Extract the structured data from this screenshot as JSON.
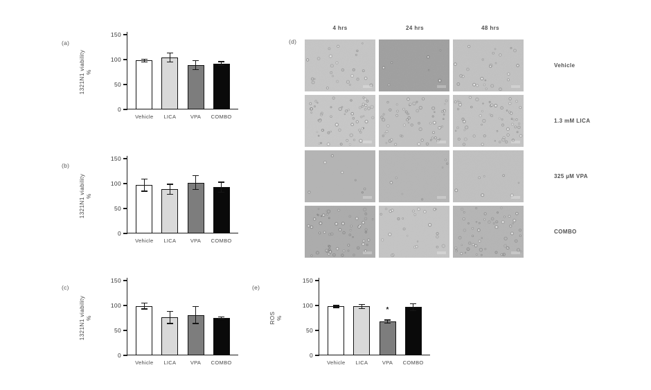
{
  "colors": {
    "axis": "#1c1c1c",
    "text": "#3e3e3e",
    "bar_white": "#ffffff",
    "bar_lightgray": "#d9d9d9",
    "bar_darkgray": "#7d7d7d",
    "bar_black": "#0a0a0a"
  },
  "chart_data": [
    {
      "type": "bar",
      "panel_label": "(a)",
      "categories": [
        "Vehicle",
        "LICA",
        "VPA",
        "COMBO"
      ],
      "values": [
        98,
        104,
        89,
        92
      ],
      "errors": [
        3,
        9,
        9,
        4
      ],
      "bar_colors": [
        "#ffffff",
        "#d9d9d9",
        "#7d7d7d",
        "#0a0a0a"
      ],
      "ylabel_line1": "1321N1 viability",
      "ylabel_line2": "%",
      "xlabel": "",
      "yticks": [
        0,
        50,
        100,
        150
      ],
      "ylim": [
        0,
        150
      ],
      "annotations": []
    },
    {
      "type": "bar",
      "panel_label": "(b)",
      "categories": [
        "Vehicle",
        "LICA",
        "VPA",
        "COMBO"
      ],
      "values": [
        97,
        89,
        102,
        93
      ],
      "errors": [
        12,
        10,
        14,
        10
      ],
      "bar_colors": [
        "#ffffff",
        "#d9d9d9",
        "#7d7d7d",
        "#0a0a0a"
      ],
      "ylabel_line1": "1321N1 viability",
      "ylabel_line2": "%",
      "xlabel": "",
      "yticks": [
        0,
        50,
        100,
        150
      ],
      "ylim": [
        0,
        150
      ],
      "annotations": []
    },
    {
      "type": "bar",
      "panel_label": "(c)",
      "categories": [
        "Vehicle",
        "LICA",
        "VPA",
        "COMBO"
      ],
      "values": [
        99,
        76,
        81,
        75
      ],
      "errors": [
        6,
        12,
        17,
        2
      ],
      "bar_colors": [
        "#ffffff",
        "#d9d9d9",
        "#7d7d7d",
        "#0a0a0a"
      ],
      "ylabel_line1": "1321N1 viability",
      "ylabel_line2": "%",
      "xlabel": "",
      "yticks": [
        0,
        50,
        100,
        150
      ],
      "ylim": [
        0,
        150
      ],
      "annotations": []
    },
    {
      "type": "bar",
      "panel_label": "(e)",
      "categories": [
        "Vehicle",
        "LICA",
        "VPA",
        "COMBO"
      ],
      "values": [
        98,
        98,
        68,
        97
      ],
      "errors": [
        2,
        4,
        3,
        7
      ],
      "bar_colors": [
        "#ffffff",
        "#d9d9d9",
        "#7d7d7d",
        "#0a0a0a"
      ],
      "ylabel_line1": "ROS",
      "ylabel_line2": "%",
      "xlabel": "",
      "yticks": [
        0,
        50,
        100,
        150
      ],
      "ylim": [
        0,
        150
      ],
      "annotations": [
        {
          "category": "VPA",
          "text": "*"
        }
      ]
    }
  ],
  "micrographs": {
    "panel_label": "(d)",
    "column_headers": [
      "4 hrs",
      "24 hrs",
      "48 hrs"
    ],
    "rows": [
      {
        "label": "Vehicle",
        "tones": [
          "#c7c7c7",
          "#9e9e9e",
          "#c3c3c3"
        ],
        "speckle": [
          1,
          0,
          1
        ]
      },
      {
        "label": "1.3 mM LICA",
        "tones": [
          "#c9c9c9",
          "#c2c2c2",
          "#c5c5c5"
        ],
        "speckle": [
          2,
          2,
          2
        ]
      },
      {
        "label": "325 µM VPA",
        "tones": [
          "#b4b4b4",
          "#b6b6b6",
          "#c1c1c1"
        ],
        "speckle": [
          0,
          0,
          0
        ]
      },
      {
        "label": "COMBO",
        "tones": [
          "#ababab",
          "#c6c6c6",
          "#b5b5b5"
        ],
        "speckle": [
          2,
          1,
          2
        ]
      }
    ]
  }
}
